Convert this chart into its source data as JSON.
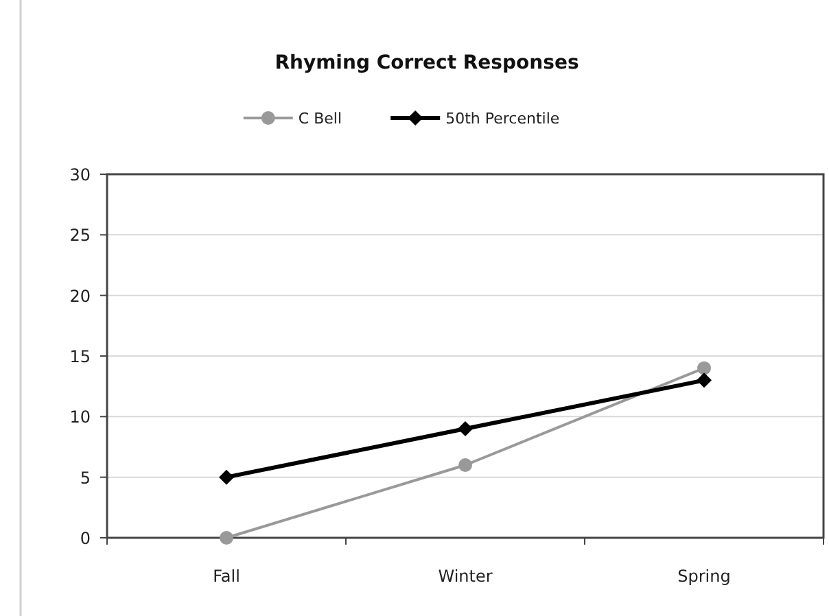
{
  "chart_data": {
    "type": "line",
    "title": "Rhyming Correct Responses",
    "categories": [
      "Fall",
      "Winter",
      "Spring"
    ],
    "series": [
      {
        "name": "C Bell",
        "color": "#999999",
        "values": [
          0,
          6,
          14
        ],
        "marker": "circle"
      },
      {
        "name": "50th Percentile",
        "color": "#000000",
        "values": [
          5,
          9,
          13
        ],
        "marker": "diamond"
      }
    ],
    "ylim": [
      0,
      30
    ],
    "yticks": [
      0,
      5,
      10,
      15,
      20,
      25,
      30
    ],
    "grid": "y",
    "legend": "top"
  }
}
